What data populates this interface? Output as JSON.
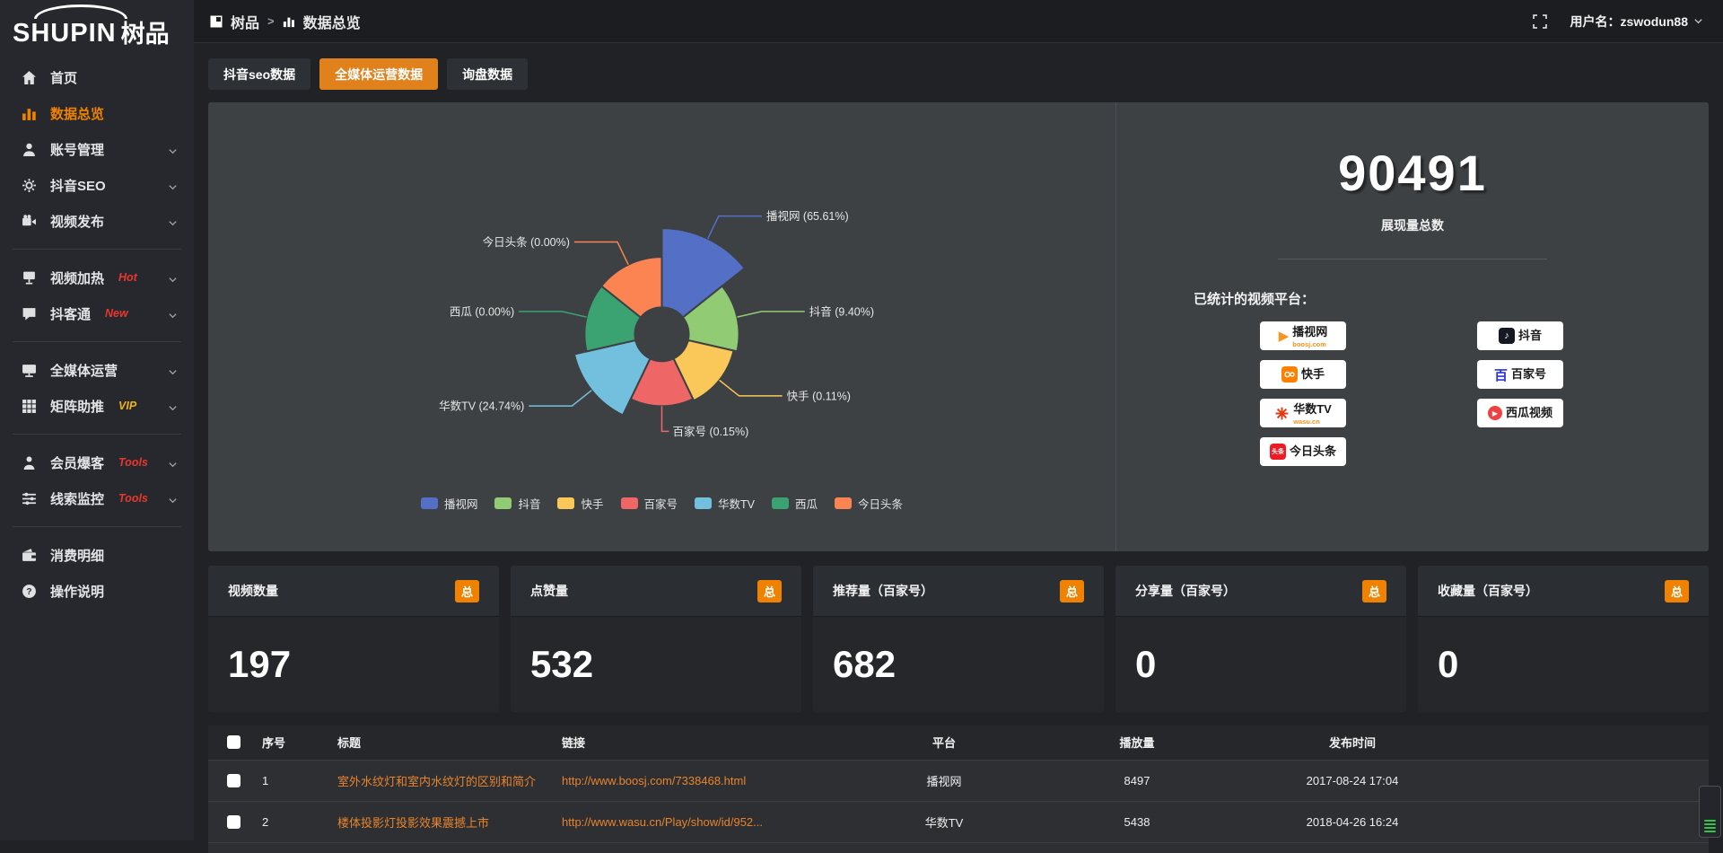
{
  "topbar": {
    "breadcrumb": {
      "root": "树品",
      "separator": ">",
      "current": "数据总览"
    },
    "username": "用户名：zswodun88"
  },
  "logo": {
    "text_en": "SHUPIN",
    "text_cn": "树品"
  },
  "sidebar": {
    "items": [
      {
        "key": "home",
        "label": "首页",
        "icon": "home-icon"
      },
      {
        "key": "data-overview",
        "label": "数据总览",
        "icon": "bar-chart-icon",
        "active": true
      },
      {
        "key": "account-manage",
        "label": "账号管理",
        "icon": "user-icon",
        "chevron": true
      },
      {
        "key": "douyin-seo",
        "label": "抖音SEO",
        "icon": "gear-icon",
        "chevron": true
      },
      {
        "key": "video-publish",
        "label": "视频发布",
        "icon": "video-icon",
        "chevron": true,
        "divider_after": true
      },
      {
        "key": "video-heat",
        "label": "视频加热",
        "icon": "screen-icon",
        "chevron": true,
        "badge": "Hot",
        "badge_color": "#e8372f"
      },
      {
        "key": "doukertong",
        "label": "抖客通",
        "icon": "chat-icon",
        "chevron": true,
        "badge": "New",
        "badge_color": "#e8372f",
        "divider_after": true
      },
      {
        "key": "omnimedia",
        "label": "全媒体运营",
        "icon": "monitor-icon",
        "chevron": true
      },
      {
        "key": "matrix-boost",
        "label": "矩阵助推",
        "icon": "grid-icon",
        "chevron": true,
        "badge": "VIP",
        "badge_color": "#f0b410",
        "divider_after": true
      },
      {
        "key": "member-burst",
        "label": "会员爆客",
        "icon": "person-icon",
        "chevron": true,
        "badge": "Tools",
        "badge_color": "#e8372f"
      },
      {
        "key": "clue-monitor",
        "label": "线索监控",
        "icon": "sliders-icon",
        "chevron": true,
        "badge": "Tools",
        "badge_color": "#e8372f",
        "divider_after": true
      },
      {
        "key": "consume-detail",
        "label": "消费明细",
        "icon": "wallet-icon"
      },
      {
        "key": "help",
        "label": "操作说明",
        "icon": "question-icon"
      }
    ]
  },
  "tabs": [
    {
      "label": "抖音seo数据",
      "active": false
    },
    {
      "label": "全媒体运营数据",
      "active": true
    },
    {
      "label": "询盘数据",
      "active": false
    }
  ],
  "chart_data": {
    "type": "pie",
    "subtype": "nightingale-rose",
    "equal_angles": true,
    "start_angle_deg": 0,
    "inner_radius": 30,
    "legend_position": "bottom",
    "slices": [
      {
        "name": "播视网",
        "value_pct": 65.61,
        "label": "播视网 (65.61%)",
        "color": "#5470c6",
        "radius": 118
      },
      {
        "name": "抖音",
        "value_pct": 9.4,
        "label": "抖音 (9.40%)",
        "color": "#91cc75",
        "radius": 86
      },
      {
        "name": "快手",
        "value_pct": 0.11,
        "label": "快手 (0.11%)",
        "color": "#fac858",
        "radius": 82
      },
      {
        "name": "百家号",
        "value_pct": 0.15,
        "label": "百家号 (0.15%)",
        "color": "#ee6666",
        "radius": 80
      },
      {
        "name": "华数TV",
        "value_pct": 24.74,
        "label": "华数TV (24.74%)",
        "color": "#73c0de",
        "radius": 100
      },
      {
        "name": "西瓜",
        "value_pct": 0.0,
        "label": "西瓜 (0.00%)",
        "color": "#3ba272",
        "radius": 86
      },
      {
        "name": "今日头条",
        "value_pct": 0.0,
        "label": "今日头条 (0.00%)",
        "color": "#fc8452",
        "radius": 86
      }
    ]
  },
  "summary": {
    "total_value": "90491",
    "total_label": "展现量总数",
    "platforms_title": "已统计的视频平台：",
    "platforms": [
      {
        "key": "boosj",
        "name": "播视网",
        "sub": "boosj.com"
      },
      {
        "key": "douyin",
        "name": "抖音"
      },
      {
        "key": "kuaishou",
        "name": "快手"
      },
      {
        "key": "baijiahao",
        "name": "百家号"
      },
      {
        "key": "wasu",
        "name": "华数TV",
        "sub": "wasu.cn"
      },
      {
        "key": "xigua",
        "name": "西瓜视频"
      },
      {
        "key": "toutiao",
        "name": "今日头条"
      }
    ]
  },
  "stat_cards": [
    {
      "title": "视频数量",
      "badge": "总",
      "value": "197"
    },
    {
      "title": "点赞量",
      "badge": "总",
      "value": "532"
    },
    {
      "title": "推荐量（百家号）",
      "badge": "总",
      "value": "682"
    },
    {
      "title": "分享量（百家号）",
      "badge": "总",
      "value": "0"
    },
    {
      "title": "收藏量（百家号）",
      "badge": "总",
      "value": "0"
    }
  ],
  "table": {
    "headers": [
      "序号",
      "标题",
      "链接",
      "平台",
      "播放量",
      "发布时间"
    ],
    "rows": [
      {
        "seq": "1",
        "title": "室外水纹灯和室内水纹灯的区别和简介",
        "url": "http://www.boosj.com/7338468.html",
        "platform": "播视网",
        "plays": "8497",
        "time": "2017-08-24 17:04"
      },
      {
        "seq": "2",
        "title": "楼体投影灯投影效果震撼上市",
        "url": "http://www.wasu.cn/Play/show/id/952...",
        "platform": "华数TV",
        "plays": "5438",
        "time": "2018-04-26 16:24"
      }
    ]
  }
}
